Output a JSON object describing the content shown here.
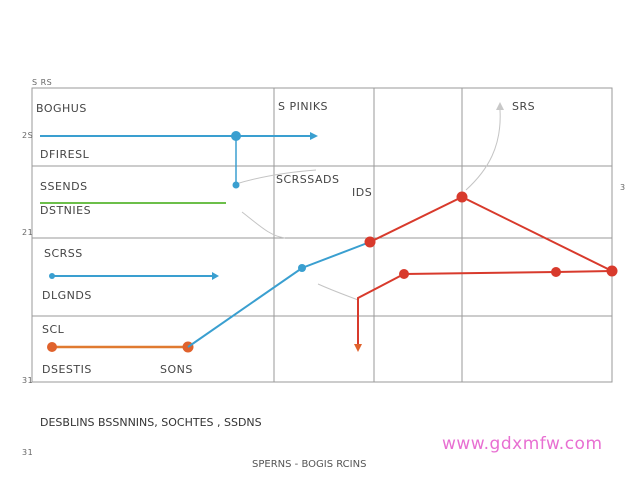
{
  "left_labels": [
    "BOGHUS",
    "DFIRESL",
    "SSENDS",
    "DSTNIES",
    "SCRSS",
    "DLGNDS",
    "SCL",
    "DSESTIS"
  ],
  "top_corner_label": "S RS",
  "grid_labels": {
    "col2_top": "S PINIKS",
    "col3_top": "SRS",
    "mid_a": "SCRSSADS",
    "mid_b": "IDS",
    "bottom": "SONS"
  },
  "margin_marks": {
    "m1": "2S",
    "m2": "21",
    "m3": "31",
    "m4": "31",
    "m5": "3"
  },
  "caption": "DESBLINS  BSSNNINS,  SOCHTES , SSDNS",
  "footer": "SPERNS - BOGIS RCINS",
  "colors": {
    "blue": "#3a9fd0",
    "green": "#6cbf4a",
    "red": "#d83a2c",
    "orange": "#e07a30",
    "grid": "#999999"
  },
  "watermark": "www.gdxmfw.com"
}
